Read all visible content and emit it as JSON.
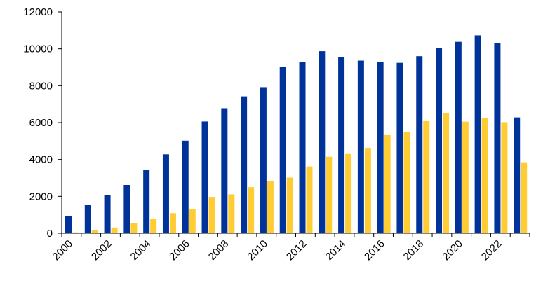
{
  "chart_data": {
    "type": "bar",
    "categories": [
      "2000",
      "2001",
      "2002",
      "2003",
      "2004",
      "2005",
      "2006",
      "2007",
      "2008",
      "2009",
      "2010",
      "2011",
      "2012",
      "2013",
      "2014",
      "2015",
      "2016",
      "2017",
      "2018",
      "2019",
      "2020",
      "2021",
      "2022",
      "2023"
    ],
    "x_tick_labels": [
      "2000",
      "2002",
      "2004",
      "2006",
      "2008",
      "2010",
      "2012",
      "2014",
      "2016",
      "2018",
      "2020",
      "2022"
    ],
    "y_ticks": [
      0,
      2000,
      4000,
      6000,
      8000,
      10000,
      12000
    ],
    "y_tick_labels": [
      "0",
      "2000",
      "4000",
      "6000",
      "8000",
      "10000",
      "12000"
    ],
    "ylim": [
      0,
      12000
    ],
    "grid": false,
    "legend": "none",
    "series": [
      {
        "color": "#003399",
        "values": [
          950,
          1550,
          2060,
          2620,
          3450,
          4280,
          5020,
          6060,
          6780,
          7420,
          7920,
          9020,
          9300,
          9870,
          9560,
          9360,
          9280,
          9240,
          9600,
          10030,
          10380,
          10730,
          10330,
          6280
        ]
      },
      {
        "color": "#FFCC33",
        "values": [
          50,
          170,
          310,
          540,
          760,
          1090,
          1290,
          1970,
          2110,
          2500,
          2840,
          3020,
          3620,
          4150,
          4300,
          4630,
          5320,
          5480,
          6080,
          6500,
          6050,
          6240,
          6020,
          3850
        ]
      }
    ]
  }
}
